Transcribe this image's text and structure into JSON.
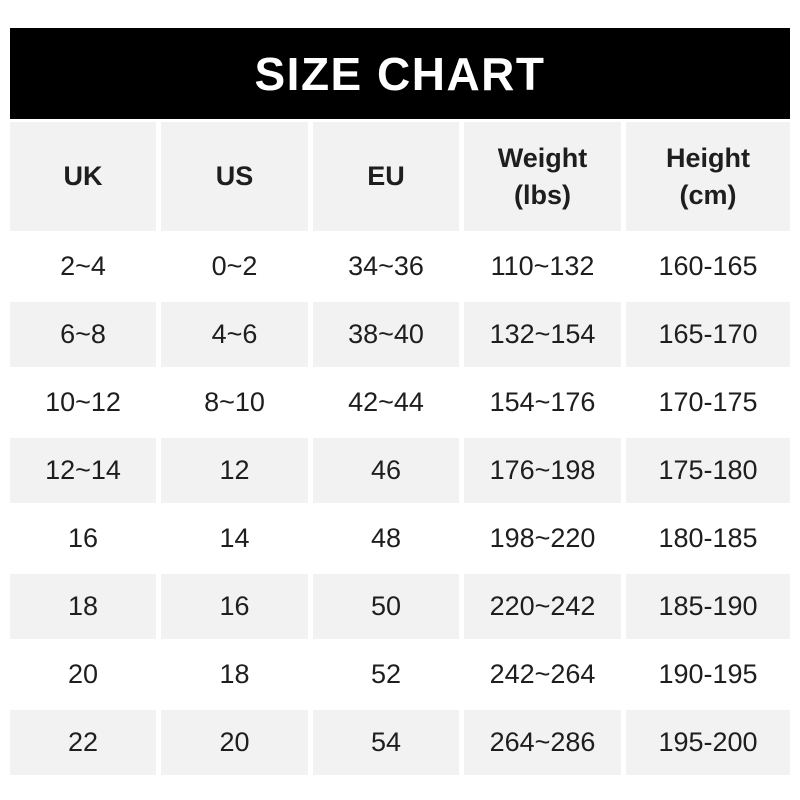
{
  "title": "SIZE CHART",
  "colors": {
    "page_bg": "#ffffff",
    "banner_bg": "#000000",
    "banner_text": "#ffffff",
    "cell_gray": "#f2f2f2",
    "text": "#1e1e1e"
  },
  "columns": [
    {
      "label": "UK",
      "sublabel": ""
    },
    {
      "label": "US",
      "sublabel": ""
    },
    {
      "label": "EU",
      "sublabel": ""
    },
    {
      "label": "Weight",
      "sublabel": "(lbs)"
    },
    {
      "label": "Height",
      "sublabel": "(cm)"
    }
  ],
  "chart_data": {
    "type": "table",
    "title": "SIZE CHART",
    "columns": [
      "UK",
      "US",
      "EU",
      "Weight (lbs)",
      "Height (cm)"
    ],
    "rows": [
      [
        "2~4",
        "0~2",
        "34~36",
        "110~132",
        "160-165"
      ],
      [
        "6~8",
        "4~6",
        "38~40",
        "132~154",
        "165-170"
      ],
      [
        "10~12",
        "8~10",
        "42~44",
        "154~176",
        "170-175"
      ],
      [
        "12~14",
        "12",
        "46",
        "176~198",
        "175-180"
      ],
      [
        "16",
        "14",
        "48",
        "198~220",
        "180-185"
      ],
      [
        "18",
        "16",
        "50",
        "220~242",
        "185-190"
      ],
      [
        "20",
        "18",
        "52",
        "242~264",
        "190-195"
      ],
      [
        "22",
        "20",
        "54",
        "264~286",
        "195-200"
      ]
    ],
    "layout": {
      "header_background": "#f2f2f2",
      "zebra_striping": "even data rows shaded #f2f2f2, odd rows white",
      "grid": "off (white gaps act as separators)"
    }
  }
}
